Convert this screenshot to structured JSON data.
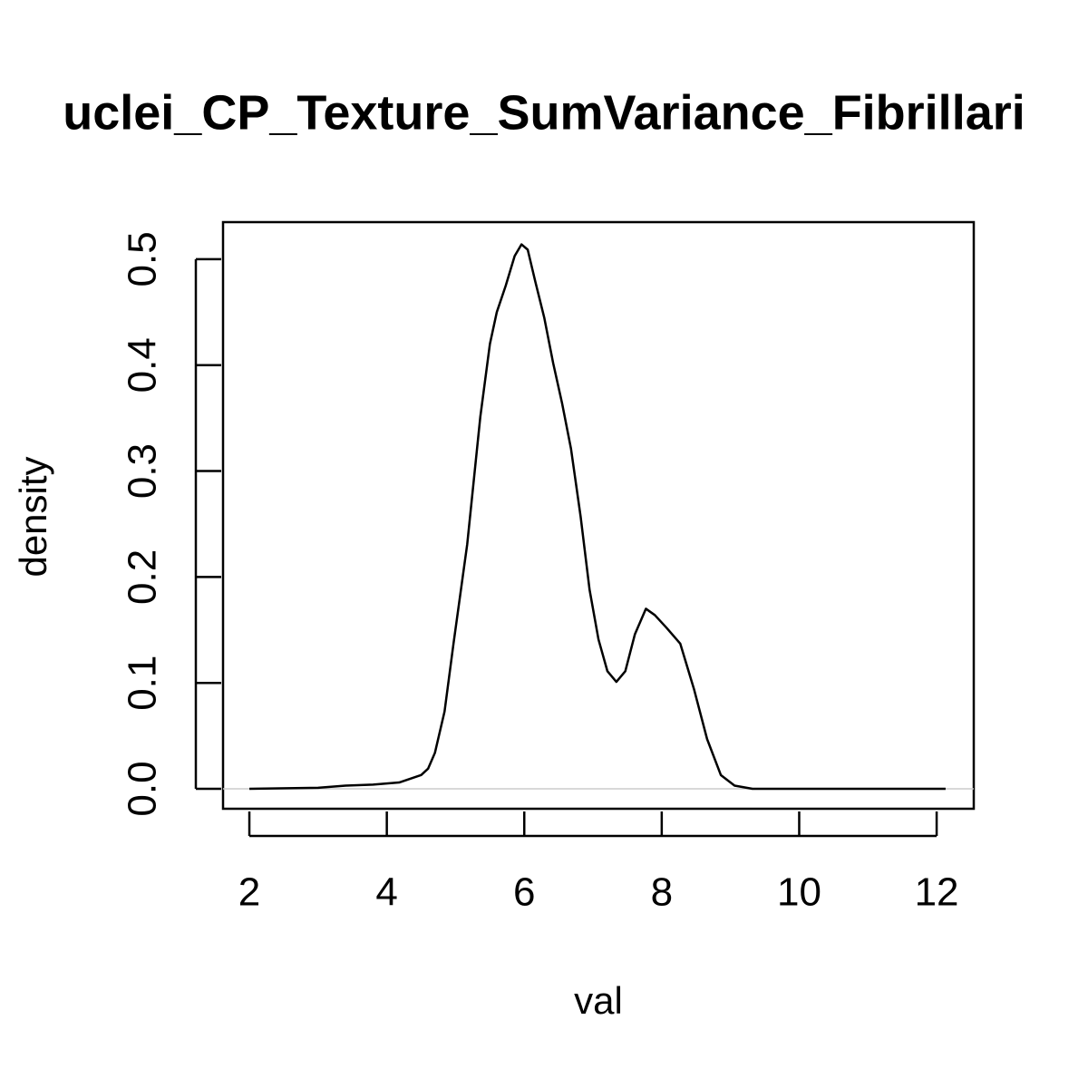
{
  "chart_data": {
    "type": "line",
    "title": "uclei_CP_Texture_SumVariance_Fibrillari",
    "xlabel": "val",
    "ylabel": "density",
    "x": [
      2.0,
      3.0,
      3.4,
      3.8,
      4.18,
      4.5,
      4.6,
      4.7,
      4.84,
      4.97,
      5.17,
      5.36,
      5.5,
      5.6,
      5.73,
      5.86,
      5.96,
      6.05,
      6.16,
      6.29,
      6.42,
      6.55,
      6.68,
      6.82,
      6.95,
      7.08,
      7.21,
      7.34,
      7.47,
      7.61,
      7.77,
      7.9,
      8.07,
      8.27,
      8.47,
      8.66,
      8.86,
      9.06,
      9.32,
      12.13
    ],
    "y": [
      0,
      0.001,
      0.003,
      0.004,
      0.006,
      0.013,
      0.019,
      0.034,
      0.073,
      0.137,
      0.231,
      0.351,
      0.42,
      0.45,
      0.475,
      0.503,
      0.514,
      0.509,
      0.479,
      0.445,
      0.402,
      0.364,
      0.321,
      0.257,
      0.188,
      0.141,
      0.111,
      0.101,
      0.111,
      0.146,
      0.17,
      0.164,
      0.152,
      0.137,
      0.094,
      0.047,
      0.013,
      0.003,
      0,
      0
    ],
    "color": "#000000",
    "baseline_color": "#cccccc",
    "xlim": [
      1.617,
      12.54
    ],
    "ylim": [
      -0.0188,
      0.535
    ],
    "xticks": [
      2,
      4,
      6,
      8,
      10,
      12
    ],
    "yticks": [
      {
        "value": 0,
        "label": "0.0"
      },
      0.1,
      0.2,
      0.3,
      0.4,
      0.5
    ]
  }
}
